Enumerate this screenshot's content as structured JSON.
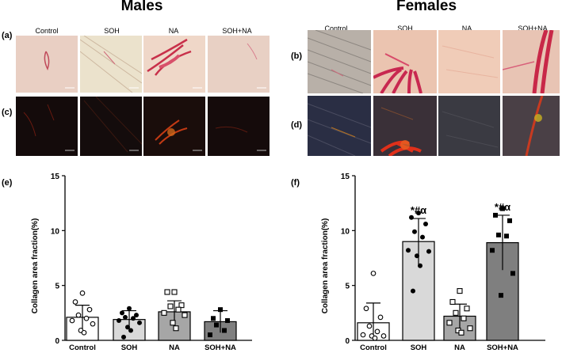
{
  "figure": {
    "males_title": "Males",
    "females_title": "Females",
    "panel_a": "(a)",
    "panel_b": "(b)",
    "panel_c": "(c)",
    "panel_d": "(d)",
    "panel_e": "(e)",
    "panel_f": "(f)",
    "column_labels": [
      "Control",
      "SOH",
      "NA",
      "SOH+NA"
    ]
  },
  "chart_data": [
    {
      "type": "bar",
      "panel": "(e)",
      "categories": [
        "Control",
        "SOH",
        "NA",
        "SOH+NA"
      ],
      "values": [
        2.1,
        1.9,
        2.6,
        1.7
      ],
      "errors": [
        1.1,
        0.8,
        1.0,
        1.0
      ],
      "points": [
        [
          4.3,
          3.5,
          2.8,
          2.3,
          2.0,
          1.8,
          1.5,
          0.9,
          0.7
        ],
        [
          2.9,
          2.5,
          2.3,
          2.1,
          2.0,
          1.8,
          1.6,
          1.2,
          0.9,
          0.3
        ],
        [
          4.4,
          4.4,
          3.2,
          3.1,
          2.8,
          2.5,
          2.3,
          1.6,
          1.1
        ],
        [
          2.8,
          2.0,
          1.8,
          1.4,
          0.9,
          0.5
        ]
      ],
      "markers": [
        "open-circle",
        "filled-circle",
        "open-square",
        "filled-square"
      ],
      "bar_colors": [
        "#ffffff",
        "#d9d9d9",
        "#a6a6a6",
        "#7f7f7f"
      ],
      "ylabel": "Collagen area fraction(%)",
      "ylim": [
        0,
        15
      ],
      "yticks": [
        0,
        5,
        10,
        15
      ],
      "annotations": [
        "",
        "",
        "",
        ""
      ]
    },
    {
      "type": "bar",
      "panel": "(f)",
      "categories": [
        "Control",
        "SOH",
        "NA",
        "SOH+NA"
      ],
      "values": [
        1.6,
        9.0,
        2.2,
        8.9
      ],
      "errors": [
        1.8,
        2.1,
        1.1,
        2.5
      ],
      "points": [
        [
          6.1,
          2.9,
          2.1,
          1.3,
          0.8,
          0.5,
          0.4,
          0.4,
          0.2
        ],
        [
          11.6,
          11.2,
          10.6,
          9.9,
          9.4,
          8.2,
          8.1,
          7.7,
          6.8,
          4.5
        ],
        [
          4.5,
          3.5,
          2.9,
          2.5,
          2.0,
          1.6,
          1.1,
          0.9,
          0.7
        ],
        [
          12.0,
          11.4,
          10.9,
          9.6,
          9.5,
          8.2,
          6.1,
          4.1
        ]
      ],
      "markers": [
        "open-circle",
        "filled-circle",
        "open-square",
        "filled-square"
      ],
      "bar_colors": [
        "#ffffff",
        "#d9d9d9",
        "#a6a6a6",
        "#7f7f7f"
      ],
      "ylabel": "Collagen area fraction(%)",
      "ylim": [
        0,
        15
      ],
      "yticks": [
        0,
        5,
        10,
        15
      ],
      "annotations": [
        "",
        "*#α",
        "",
        "*#α"
      ]
    }
  ]
}
